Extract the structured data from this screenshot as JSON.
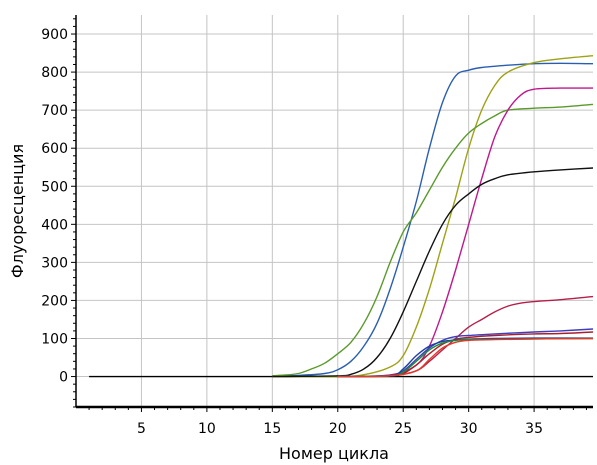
{
  "chart_data": {
    "type": "line",
    "title": "",
    "xlabel": "Номер цикла",
    "ylabel": "Флуоресценция",
    "xlim": [
      0,
      39.5
    ],
    "ylim": [
      -80,
      950
    ],
    "x_ticks": [
      5,
      10,
      15,
      20,
      25,
      30,
      35
    ],
    "y_ticks": [
      0,
      100,
      200,
      300,
      400,
      500,
      600,
      700,
      800,
      900
    ],
    "grid": true,
    "legend": "none",
    "baseline": {
      "y": 0,
      "x_range": [
        1,
        39.5
      ],
      "color": "#000000"
    },
    "series": [
      {
        "color": "#2a5fb0",
        "values": [
          [
            15,
            2
          ],
          [
            17,
            3
          ],
          [
            19,
            8
          ],
          [
            20,
            18
          ],
          [
            21,
            40
          ],
          [
            22,
            80
          ],
          [
            23,
            140
          ],
          [
            24,
            230
          ],
          [
            25,
            340
          ],
          [
            26,
            460
          ],
          [
            27,
            600
          ],
          [
            28,
            720
          ],
          [
            29,
            790
          ],
          [
            30,
            805
          ],
          [
            31,
            812
          ],
          [
            33,
            818
          ],
          [
            35,
            822
          ],
          [
            37,
            823
          ],
          [
            39.5,
            822
          ]
        ]
      },
      {
        "color": "#9ea215",
        "values": [
          [
            15,
            0
          ],
          [
            20,
            0
          ],
          [
            22,
            5
          ],
          [
            24,
            25
          ],
          [
            25,
            55
          ],
          [
            26,
            130
          ],
          [
            27,
            230
          ],
          [
            28,
            350
          ],
          [
            29,
            470
          ],
          [
            30,
            600
          ],
          [
            31,
            700
          ],
          [
            32,
            765
          ],
          [
            33,
            800
          ],
          [
            35,
            825
          ],
          [
            37,
            835
          ],
          [
            39.5,
            843
          ]
        ]
      },
      {
        "color": "#5a9a2a",
        "values": [
          [
            15,
            2
          ],
          [
            16,
            4
          ],
          [
            17,
            8
          ],
          [
            18,
            20
          ],
          [
            19,
            35
          ],
          [
            20,
            60
          ],
          [
            21,
            90
          ],
          [
            22,
            140
          ],
          [
            23,
            210
          ],
          [
            24,
            300
          ],
          [
            25,
            380
          ],
          [
            26,
            430
          ],
          [
            27,
            490
          ],
          [
            28,
            550
          ],
          [
            29,
            600
          ],
          [
            30,
            640
          ],
          [
            31,
            665
          ],
          [
            32,
            685
          ],
          [
            33,
            700
          ],
          [
            35,
            705
          ],
          [
            37,
            708
          ],
          [
            39.5,
            715
          ]
        ]
      },
      {
        "color": "#c0178c",
        "values": [
          [
            20,
            0
          ],
          [
            24,
            4
          ],
          [
            26,
            30
          ],
          [
            27,
            80
          ],
          [
            28,
            170
          ],
          [
            29,
            280
          ],
          [
            30,
            400
          ],
          [
            31,
            520
          ],
          [
            32,
            630
          ],
          [
            33,
            700
          ],
          [
            34,
            740
          ],
          [
            35,
            755
          ],
          [
            37,
            758
          ],
          [
            39.5,
            758
          ]
        ]
      },
      {
        "color": "#111111",
        "values": [
          [
            15,
            0
          ],
          [
            20,
            2
          ],
          [
            21,
            6
          ],
          [
            22,
            20
          ],
          [
            23,
            50
          ],
          [
            24,
            100
          ],
          [
            25,
            170
          ],
          [
            26,
            250
          ],
          [
            27,
            330
          ],
          [
            28,
            400
          ],
          [
            29,
            450
          ],
          [
            30,
            480
          ],
          [
            31,
            505
          ],
          [
            32,
            520
          ],
          [
            33,
            530
          ],
          [
            35,
            538
          ],
          [
            37,
            543
          ],
          [
            39.5,
            548
          ]
        ]
      },
      {
        "color": "#b51f4a",
        "values": [
          [
            20,
            0
          ],
          [
            24,
            2
          ],
          [
            26,
            15
          ],
          [
            27,
            40
          ],
          [
            28,
            70
          ],
          [
            29,
            100
          ],
          [
            30,
            130
          ],
          [
            31,
            150
          ],
          [
            32,
            170
          ],
          [
            33,
            185
          ],
          [
            34,
            193
          ],
          [
            35,
            197
          ],
          [
            37,
            202
          ],
          [
            39.5,
            210
          ]
        ]
      },
      {
        "color": "#3d3dbf",
        "values": [
          [
            20,
            0
          ],
          [
            24,
            3
          ],
          [
            25,
            15
          ],
          [
            26,
            45
          ],
          [
            27,
            75
          ],
          [
            28,
            95
          ],
          [
            29,
            105
          ],
          [
            30,
            108
          ],
          [
            32,
            112
          ],
          [
            35,
            117
          ],
          [
            37,
            120
          ],
          [
            39.5,
            125
          ]
        ]
      },
      {
        "color": "#a8202f",
        "values": [
          [
            20,
            0
          ],
          [
            24,
            2
          ],
          [
            25,
            8
          ],
          [
            26,
            30
          ],
          [
            27,
            60
          ],
          [
            28,
            85
          ],
          [
            29,
            98
          ],
          [
            30,
            103
          ],
          [
            32,
            108
          ],
          [
            35,
            112
          ],
          [
            37,
            113
          ],
          [
            39.5,
            117
          ]
        ]
      },
      {
        "color": "#1f3f9f",
        "values": [
          [
            20,
            0
          ],
          [
            24,
            3
          ],
          [
            25,
            20
          ],
          [
            26,
            55
          ],
          [
            27,
            80
          ],
          [
            28,
            92
          ],
          [
            29,
            96
          ],
          [
            30,
            98
          ],
          [
            32,
            100
          ],
          [
            35,
            101
          ],
          [
            39.5,
            101
          ]
        ]
      },
      {
        "color": "#178f3a",
        "values": [
          [
            20,
            0
          ],
          [
            24,
            2
          ],
          [
            25,
            12
          ],
          [
            26,
            40
          ],
          [
            27,
            70
          ],
          [
            28,
            88
          ],
          [
            29,
            95
          ],
          [
            30,
            97
          ],
          [
            32,
            98
          ],
          [
            35,
            99
          ],
          [
            39.5,
            100
          ]
        ]
      },
      {
        "color": "#e23a2a",
        "values": [
          [
            20,
            0
          ],
          [
            24,
            2
          ],
          [
            26,
            15
          ],
          [
            27,
            45
          ],
          [
            28,
            75
          ],
          [
            29,
            90
          ],
          [
            30,
            95
          ],
          [
            32,
            97
          ],
          [
            35,
            99
          ],
          [
            39.5,
            100
          ]
        ]
      }
    ]
  }
}
